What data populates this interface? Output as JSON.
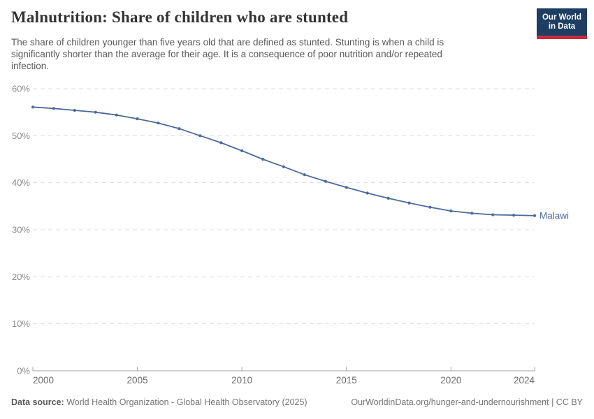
{
  "header": {
    "title": "Malnutrition: Share of children who are stunted",
    "subtitle_lines": [
      "The share of children younger than five years old that are defined as stunted. Stunting is when a child is",
      "significantly shorter than the average for their age. It is a consequence of poor nutrition and/or repeated",
      "infection."
    ],
    "logo": {
      "line1": "Our World",
      "line2": "in Data",
      "bg_color": "#1d3d63",
      "bar_color": "#cc2b39"
    }
  },
  "chart_data": {
    "type": "line",
    "title": "Malnutrition: Share of children who are stunted",
    "x": [
      2000,
      2001,
      2002,
      2003,
      2004,
      2005,
      2006,
      2007,
      2008,
      2009,
      2010,
      2011,
      2012,
      2013,
      2014,
      2015,
      2016,
      2017,
      2018,
      2019,
      2020,
      2021,
      2022,
      2023,
      2024
    ],
    "series": [
      {
        "name": "Malawi",
        "color": "#4c6a9c",
        "values": [
          56.1,
          55.8,
          55.4,
          55.0,
          54.4,
          53.6,
          52.7,
          51.5,
          50.0,
          48.5,
          46.8,
          45.0,
          43.4,
          41.7,
          40.3,
          39.0,
          37.8,
          36.7,
          35.7,
          34.8,
          34.0,
          33.5,
          33.2,
          33.1,
          33.0
        ]
      }
    ],
    "xlim": [
      2000,
      2024
    ],
    "ylim": [
      0,
      60
    ],
    "xticks": [
      2000,
      2005,
      2010,
      2015,
      2020,
      2024
    ],
    "yticks": [
      0,
      10,
      20,
      30,
      40,
      50,
      60
    ],
    "ytick_suffix": "%",
    "grid": "horizontal-dashed",
    "legend_position": "end-of-line-label",
    "grid_color": "#dcdcdc",
    "axis_color": "#a3a3a3",
    "xtick_label_color": "#6b6b6b",
    "ytick_label_color": "#8c8c8c"
  },
  "footer": {
    "source_label": "Data source:",
    "source_text": "World Health Organization - Global Health Observatory (2025)",
    "link_text": "OurWorldinData.org/hunger-and-undernourishment | CC BY"
  }
}
